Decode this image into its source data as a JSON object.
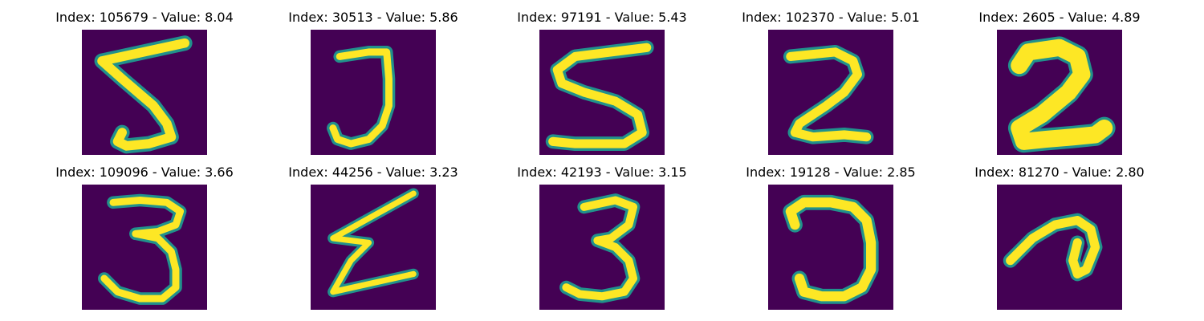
{
  "colors": {
    "background": "#440154",
    "edge": "#21918c",
    "stroke": "#fde725"
  },
  "panels": [
    {
      "title": "Index: 105679 - Value: 8.04",
      "digit": "5"
    },
    {
      "title": "Index: 30513 - Value: 5.86",
      "digit": "J-like curve"
    },
    {
      "title": "Index: 97191 - Value: 5.43",
      "digit": "5"
    },
    {
      "title": "Index: 102370 - Value: 5.01",
      "digit": "2"
    },
    {
      "title": "Index: 2605 - Value: 4.89",
      "digit": "2"
    },
    {
      "title": "Index: 109096 - Value: 3.66",
      "digit": "3"
    },
    {
      "title": "Index: 44256 - Value: 3.23",
      "digit": "zigzag"
    },
    {
      "title": "Index: 42193 - Value: 3.15",
      "digit": "3"
    },
    {
      "title": "Index: 19128 - Value: 2.85",
      "digit": "reversed C"
    },
    {
      "title": "Index: 81270 - Value: 2.80",
      "digit": "loop"
    }
  ]
}
